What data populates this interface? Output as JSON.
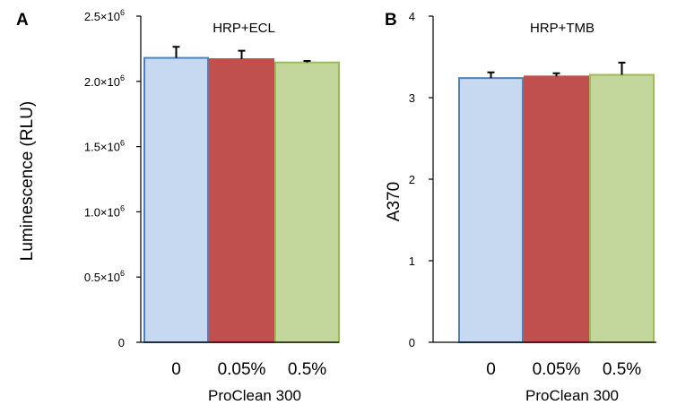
{
  "chart_data": [
    {
      "type": "bar",
      "panel": "A",
      "title": "HRP+ECL",
      "ylabel": "Luminescence (RLU)",
      "xlabel": "ProClean 300",
      "categories": [
        "0",
        "0.05%",
        "0.5%"
      ],
      "values": [
        2180000,
        2170000,
        2145000
      ],
      "errors": [
        85000,
        65000,
        12000
      ],
      "ylim": [
        0,
        2500000
      ],
      "yticks": [
        {
          "value": 0,
          "base": "0",
          "exp": ""
        },
        {
          "value": 500000,
          "base": "0.5×10",
          "exp": "6"
        },
        {
          "value": 1000000,
          "base": "1.0×10",
          "exp": "6"
        },
        {
          "value": 1500000,
          "base": "1.5×10",
          "exp": "6"
        },
        {
          "value": 2000000,
          "base": "2.0×10",
          "exp": "6"
        },
        {
          "value": 2500000,
          "base": "2.5×10",
          "exp": "6"
        }
      ],
      "bar_fills": [
        "#c6d9f0",
        "#c0504d",
        "#c3d69b"
      ],
      "bar_strokes": [
        "#4f81bd",
        "#c0504d",
        "#9bbb59"
      ],
      "grid": false
    },
    {
      "type": "bar",
      "panel": "B",
      "title": "HRP+TMB",
      "ylabel": "A370",
      "xlabel": "ProClean 300",
      "categories": [
        "0",
        "0.05%",
        "0.5%"
      ],
      "values": [
        3.24,
        3.26,
        3.28
      ],
      "errors": [
        0.07,
        0.04,
        0.15
      ],
      "ylim": [
        0,
        4
      ],
      "yticks": [
        {
          "value": 0,
          "base": "0",
          "exp": ""
        },
        {
          "value": 1,
          "base": "1",
          "exp": ""
        },
        {
          "value": 2,
          "base": "2",
          "exp": ""
        },
        {
          "value": 3,
          "base": "3",
          "exp": ""
        },
        {
          "value": 4,
          "base": "4",
          "exp": ""
        }
      ],
      "bar_fills": [
        "#c6d9f0",
        "#c0504d",
        "#c3d69b"
      ],
      "bar_strokes": [
        "#4f81bd",
        "#c0504d",
        "#9bbb59"
      ],
      "grid": false
    }
  ]
}
